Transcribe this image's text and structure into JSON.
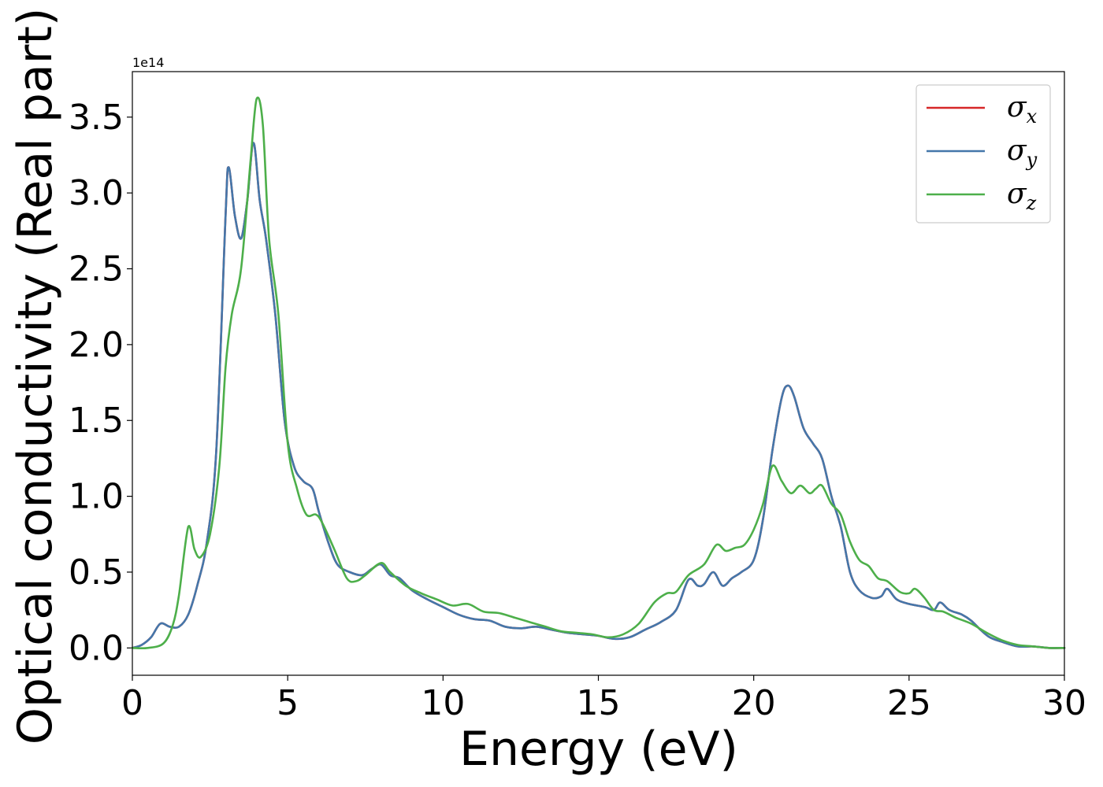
{
  "chart_data": {
    "type": "line",
    "title": "",
    "xlabel": "Energy (eV)",
    "ylabel": "Optical conductivity (Real part)",
    "offset_text": "1e14",
    "xlim": [
      0,
      30
    ],
    "ylim": [
      -0.18,
      3.8
    ],
    "xticks": [
      0,
      5,
      10,
      15,
      20,
      25,
      30
    ],
    "xtick_labels": [
      "0",
      "5",
      "10",
      "15",
      "20",
      "25",
      "30"
    ],
    "yticks": [
      0.0,
      0.5,
      1.0,
      1.5,
      2.0,
      2.5,
      3.0,
      3.5
    ],
    "ytick_labels": [
      "0.0",
      "0.5",
      "1.0",
      "1.5",
      "2.0",
      "2.5",
      "3.0",
      "3.5"
    ],
    "grid": false,
    "legend_position": "top-right",
    "series": [
      {
        "name": "σx",
        "legend_base": "σ",
        "legend_sub": "x",
        "color": "#d62728",
        "x": [
          0,
          0.3,
          0.6,
          0.9,
          1.2,
          1.5,
          1.8,
          2.1,
          2.4,
          2.7,
          3.0,
          3.1,
          3.3,
          3.5,
          3.7,
          3.9,
          4.1,
          4.3,
          4.6,
          4.9,
          5.2,
          5.5,
          5.8,
          6.0,
          6.3,
          6.6,
          7.0,
          7.4,
          7.7,
          8.0,
          8.3,
          8.6,
          9.0,
          9.5,
          10.0,
          10.5,
          11.0,
          11.5,
          12.0,
          12.5,
          13.0,
          13.5,
          14.0,
          14.5,
          15.0,
          15.5,
          16.0,
          16.5,
          17.0,
          17.5,
          17.9,
          18.2,
          18.4,
          18.7,
          19.0,
          19.3,
          19.6,
          20.0,
          20.3,
          20.6,
          20.9,
          21.1,
          21.3,
          21.6,
          21.9,
          22.2,
          22.5,
          22.8,
          23.1,
          23.4,
          23.8,
          24.1,
          24.3,
          24.6,
          25.0,
          25.5,
          25.8,
          26.0,
          26.3,
          26.7,
          27.0,
          27.3,
          27.6,
          28.0,
          28.5,
          29.0,
          29.5,
          30.0
        ],
        "y": [
          0.0,
          0.02,
          0.07,
          0.16,
          0.14,
          0.14,
          0.22,
          0.42,
          0.7,
          1.3,
          2.85,
          3.17,
          2.85,
          2.7,
          2.95,
          3.33,
          2.95,
          2.7,
          2.2,
          1.5,
          1.2,
          1.1,
          1.05,
          0.9,
          0.7,
          0.55,
          0.5,
          0.48,
          0.52,
          0.55,
          0.48,
          0.46,
          0.38,
          0.32,
          0.27,
          0.22,
          0.19,
          0.18,
          0.14,
          0.13,
          0.14,
          0.12,
          0.1,
          0.09,
          0.08,
          0.06,
          0.07,
          0.12,
          0.17,
          0.25,
          0.45,
          0.41,
          0.42,
          0.5,
          0.41,
          0.46,
          0.5,
          0.58,
          0.85,
          1.3,
          1.65,
          1.73,
          1.66,
          1.45,
          1.35,
          1.25,
          1.0,
          0.8,
          0.5,
          0.38,
          0.33,
          0.34,
          0.39,
          0.32,
          0.29,
          0.27,
          0.25,
          0.3,
          0.25,
          0.22,
          0.18,
          0.12,
          0.07,
          0.04,
          0.01,
          0.01,
          0.0,
          0.0
        ]
      },
      {
        "name": "σy",
        "legend_base": "σ",
        "legend_sub": "y",
        "color": "#4477aa",
        "x": [
          0,
          0.3,
          0.6,
          0.9,
          1.2,
          1.5,
          1.8,
          2.1,
          2.4,
          2.7,
          3.0,
          3.1,
          3.3,
          3.5,
          3.7,
          3.9,
          4.1,
          4.3,
          4.6,
          4.9,
          5.2,
          5.5,
          5.8,
          6.0,
          6.3,
          6.6,
          7.0,
          7.4,
          7.7,
          8.0,
          8.3,
          8.6,
          9.0,
          9.5,
          10.0,
          10.5,
          11.0,
          11.5,
          12.0,
          12.5,
          13.0,
          13.5,
          14.0,
          14.5,
          15.0,
          15.5,
          16.0,
          16.5,
          17.0,
          17.5,
          17.9,
          18.2,
          18.4,
          18.7,
          19.0,
          19.3,
          19.6,
          20.0,
          20.3,
          20.6,
          20.9,
          21.1,
          21.3,
          21.6,
          21.9,
          22.2,
          22.5,
          22.8,
          23.1,
          23.4,
          23.8,
          24.1,
          24.3,
          24.6,
          25.0,
          25.5,
          25.8,
          26.0,
          26.3,
          26.7,
          27.0,
          27.3,
          27.6,
          28.0,
          28.5,
          29.0,
          29.5,
          30.0
        ],
        "y": [
          0.0,
          0.02,
          0.07,
          0.16,
          0.14,
          0.14,
          0.22,
          0.42,
          0.7,
          1.3,
          2.85,
          3.17,
          2.85,
          2.7,
          2.95,
          3.33,
          2.95,
          2.7,
          2.2,
          1.5,
          1.2,
          1.1,
          1.05,
          0.9,
          0.7,
          0.55,
          0.5,
          0.48,
          0.52,
          0.55,
          0.48,
          0.46,
          0.38,
          0.32,
          0.27,
          0.22,
          0.19,
          0.18,
          0.14,
          0.13,
          0.14,
          0.12,
          0.1,
          0.09,
          0.08,
          0.06,
          0.07,
          0.12,
          0.17,
          0.25,
          0.45,
          0.41,
          0.42,
          0.5,
          0.41,
          0.46,
          0.5,
          0.58,
          0.85,
          1.3,
          1.65,
          1.73,
          1.66,
          1.45,
          1.35,
          1.25,
          1.0,
          0.8,
          0.5,
          0.38,
          0.33,
          0.34,
          0.39,
          0.32,
          0.29,
          0.27,
          0.25,
          0.3,
          0.25,
          0.22,
          0.18,
          0.12,
          0.07,
          0.04,
          0.01,
          0.01,
          0.0,
          0.0
        ]
      },
      {
        "name": "σz",
        "legend_base": "σ",
        "legend_sub": "z",
        "color": "#4daf4a",
        "x": [
          0,
          0.5,
          1.0,
          1.3,
          1.5,
          1.8,
          2.0,
          2.2,
          2.5,
          2.8,
          3.0,
          3.2,
          3.5,
          3.8,
          4.0,
          4.2,
          4.4,
          4.7,
          5.0,
          5.3,
          5.6,
          5.9,
          6.1,
          6.5,
          6.9,
          7.2,
          7.5,
          8.0,
          8.3,
          8.8,
          9.3,
          9.8,
          10.3,
          10.8,
          11.3,
          11.8,
          12.3,
          12.8,
          13.3,
          13.8,
          14.3,
          14.8,
          15.3,
          15.8,
          16.3,
          16.8,
          17.2,
          17.5,
          17.9,
          18.4,
          18.8,
          19.1,
          19.4,
          19.7,
          20.0,
          20.3,
          20.6,
          20.9,
          21.2,
          21.5,
          21.8,
          22.0,
          22.2,
          22.5,
          22.8,
          23.1,
          23.4,
          23.7,
          24.0,
          24.3,
          24.7,
          25.0,
          25.2,
          25.5,
          25.8,
          26.1,
          26.5,
          27.0,
          27.5,
          28.0,
          28.5,
          29.0,
          29.5,
          30.0
        ],
        "y": [
          0.0,
          0.0,
          0.03,
          0.15,
          0.35,
          0.8,
          0.65,
          0.6,
          0.75,
          1.2,
          1.85,
          2.2,
          2.5,
          3.2,
          3.62,
          3.45,
          2.7,
          2.2,
          1.35,
          1.05,
          0.88,
          0.88,
          0.83,
          0.65,
          0.46,
          0.44,
          0.48,
          0.56,
          0.5,
          0.41,
          0.36,
          0.32,
          0.28,
          0.29,
          0.24,
          0.23,
          0.2,
          0.17,
          0.14,
          0.11,
          0.1,
          0.09,
          0.07,
          0.09,
          0.16,
          0.3,
          0.36,
          0.37,
          0.48,
          0.55,
          0.68,
          0.64,
          0.66,
          0.68,
          0.78,
          0.95,
          1.2,
          1.1,
          1.02,
          1.07,
          1.02,
          1.05,
          1.07,
          0.95,
          0.88,
          0.7,
          0.58,
          0.54,
          0.46,
          0.44,
          0.37,
          0.36,
          0.39,
          0.33,
          0.25,
          0.24,
          0.2,
          0.16,
          0.1,
          0.05,
          0.02,
          0.01,
          0.0,
          0.0
        ]
      }
    ]
  }
}
